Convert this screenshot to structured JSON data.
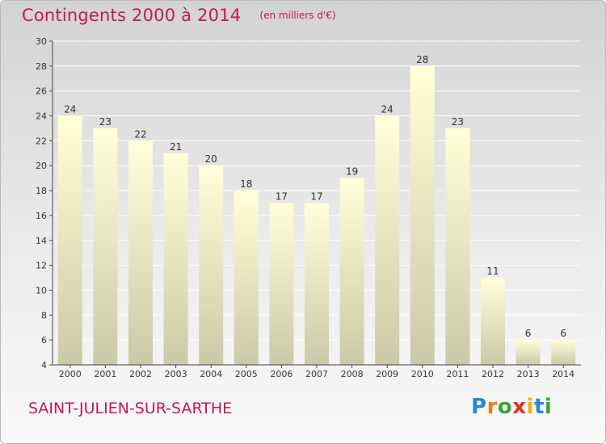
{
  "chart_data": {
    "type": "bar",
    "title": "Contingents 2000 à 2014",
    "subtitle": "(en milliers d'€)",
    "xlabel": "",
    "ylabel": "",
    "categories": [
      "2000",
      "2001",
      "2002",
      "2003",
      "2004",
      "2005",
      "2006",
      "2007",
      "2008",
      "2009",
      "2010",
      "2011",
      "2012",
      "2013",
      "2014"
    ],
    "values": [
      24,
      23,
      22,
      21,
      20,
      18,
      17,
      17,
      19,
      24,
      28,
      23,
      11,
      6,
      6
    ],
    "ylim": [
      4,
      30
    ],
    "yticks": [
      "4",
      "6",
      "8",
      "10",
      "12",
      "14",
      "16",
      "18",
      "20",
      "22",
      "24",
      "26",
      "28",
      "30"
    ],
    "grid": true,
    "legend": "none",
    "colors": {
      "bar_top": "#ffffd8",
      "bar_bottom": "#cacaa8",
      "title": "#c0185a",
      "grid": "#ffffff",
      "axis": "#444444"
    }
  },
  "footer": {
    "commune": "SAINT-JULIEN-SUR-SARTHE",
    "logo_letters": [
      {
        "ch": "P",
        "color": "#2a86d6"
      },
      {
        "ch": "r",
        "color": "#f07a14"
      },
      {
        "ch": "o",
        "color": "#38a33a"
      },
      {
        "ch": "x",
        "color": "#e83020"
      },
      {
        "ch": "i",
        "color": "#f0b010"
      },
      {
        "ch": "t",
        "color": "#2a86d6"
      },
      {
        "ch": "i",
        "color": "#38a33a"
      }
    ]
  }
}
